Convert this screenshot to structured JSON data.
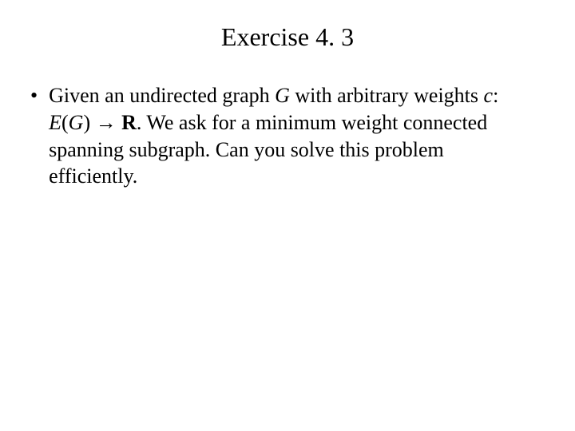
{
  "slide": {
    "title": "Exercise 4. 3",
    "bullet_char": "•",
    "body_1": "Given an undirected graph ",
    "body_G": "G",
    "body_2": " with arbitrary weights ",
    "body_c": "c",
    "body_3": ": ",
    "body_E": "E",
    "body_4": "(",
    "body_Garg": "G",
    "body_5": ") → ",
    "body_R": "R",
    "body_6": ". We ask for a minimum weight connected spanning subgraph. Can you solve this problem efficiently."
  },
  "style": {
    "background_color": "#ffffff",
    "text_color": "#000000",
    "title_fontsize": 32,
    "body_fontsize": 26,
    "font_family": "Times New Roman"
  }
}
